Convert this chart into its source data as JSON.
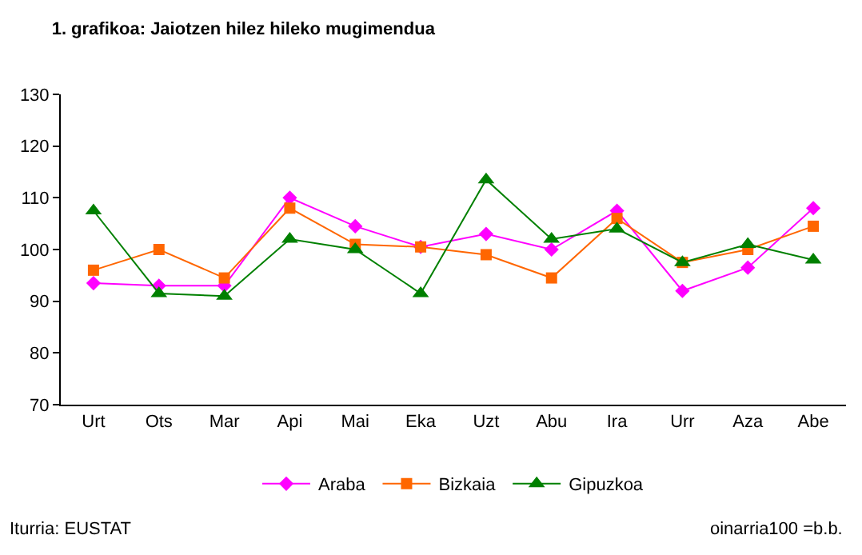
{
  "chart_data": {
    "type": "line",
    "title": "1. grafikoa: Jaiotzen hilez hileko mugimendua",
    "categories": [
      "Urt",
      "Ots",
      "Mar",
      "Api",
      "Mai",
      "Eka",
      "Uzt",
      "Abu",
      "Ira",
      "Urr",
      "Aza",
      "Abe"
    ],
    "series": [
      {
        "name": "Araba",
        "color": "#ff00ff",
        "marker": "diamond",
        "values": [
          93.5,
          93,
          93,
          110,
          104.5,
          100.5,
          103,
          100,
          107.5,
          92,
          96.5,
          108
        ]
      },
      {
        "name": "Bizkaia",
        "color": "#ff6600",
        "marker": "square",
        "values": [
          96,
          100,
          94.5,
          108,
          101,
          100.5,
          99,
          94.5,
          106,
          97.5,
          100,
          104.5
        ]
      },
      {
        "name": "Gipuzkoa",
        "color": "#008000",
        "marker": "triangle",
        "values": [
          107.5,
          91.5,
          91,
          102,
          100,
          91.5,
          113.5,
          102,
          104,
          97.5,
          101,
          98
        ]
      }
    ],
    "ylim": [
      70,
      130
    ],
    "yticks": [
      70,
      80,
      90,
      100,
      110,
      120,
      130
    ],
    "grid": false,
    "legend": "bottom",
    "annotations": [
      "Iturria: EUSTAT",
      "oinarria100 =b.b."
    ]
  }
}
